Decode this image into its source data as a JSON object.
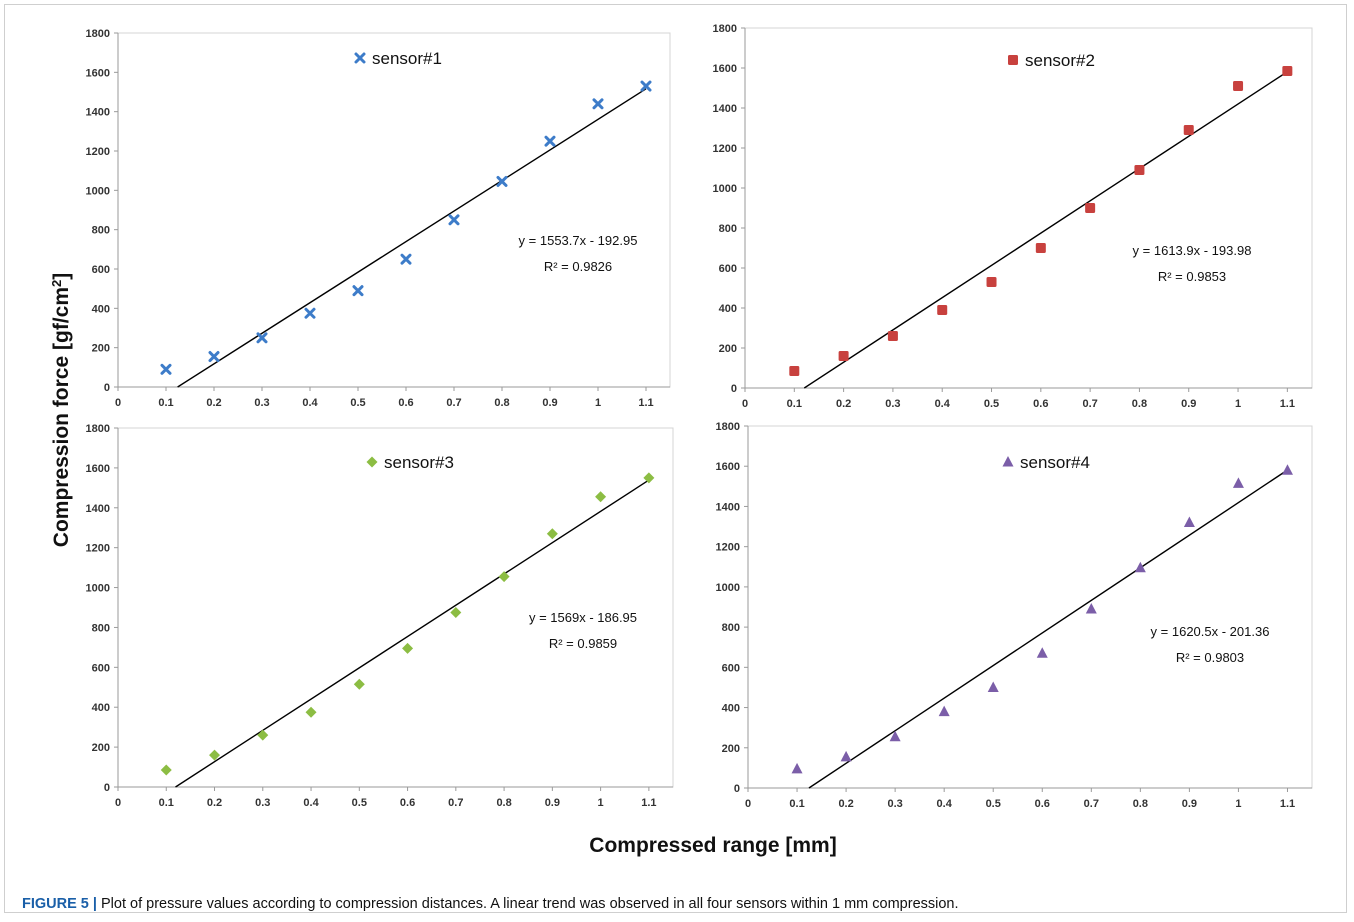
{
  "figure": {
    "ylabel": "Compression force [gf/cm",
    "ylabel_sup": "2",
    "ylabel_end": "]",
    "xlabel": "Compressed range [mm]",
    "caption_label": "FIGURE 5 |",
    "caption_text": " Plot of pressure values according to compression distances. A linear trend was observed in all four sensors within 1 mm compression."
  },
  "chart_data": [
    {
      "type": "scatter",
      "x": [
        0.1,
        0.2,
        0.3,
        0.4,
        0.5,
        0.6,
        0.7,
        0.8,
        0.9,
        1.0,
        1.1
      ],
      "series": [
        {
          "name": "sensor#1",
          "values": [
            90,
            155,
            250,
            375,
            490,
            650,
            850,
            1045,
            1250,
            1440,
            1530
          ],
          "color": "#3d7cc9",
          "marker": "x-cross"
        }
      ],
      "trendline": {
        "slope": 1553.7,
        "intercept": -192.95
      },
      "equation": "y = 1553.7x - 192.95",
      "r2": "R² = 0.9826",
      "xticks": [
        "0",
        "0.1",
        "0.2",
        "0.3",
        "0.4",
        "0.5",
        "0.6",
        "0.7",
        "0.8",
        "0.9",
        "1",
        "1.1"
      ],
      "yticks": [
        "0",
        "200",
        "400",
        "600",
        "800",
        "1000",
        "1200",
        "1400",
        "1600",
        "1800"
      ],
      "xlim": [
        0,
        1.15
      ],
      "ylim": [
        0,
        1800
      ],
      "grid": false,
      "legend_position": "top-center"
    },
    {
      "type": "scatter",
      "x": [
        0.1,
        0.2,
        0.3,
        0.4,
        0.5,
        0.6,
        0.7,
        0.8,
        0.9,
        1.0,
        1.1
      ],
      "series": [
        {
          "name": "sensor#2",
          "values": [
            85,
            160,
            260,
            390,
            530,
            700,
            900,
            1090,
            1290,
            1510,
            1585
          ],
          "color": "#c8413e",
          "marker": "square"
        }
      ],
      "trendline": {
        "slope": 1613.9,
        "intercept": -193.98
      },
      "equation": "y = 1613.9x - 193.98",
      "r2": "R² = 0.9853",
      "xticks": [
        "0",
        "0.1",
        "0.2",
        "0.3",
        "0.4",
        "0.5",
        "0.6",
        "0.7",
        "0.8",
        "0.9",
        "1",
        "1.1"
      ],
      "yticks": [
        "0",
        "200",
        "400",
        "600",
        "800",
        "1000",
        "1200",
        "1400",
        "1600",
        "1800"
      ],
      "xlim": [
        0,
        1.15
      ],
      "ylim": [
        0,
        1800
      ],
      "grid": false,
      "legend_position": "top-center"
    },
    {
      "type": "scatter",
      "x": [
        0.1,
        0.2,
        0.3,
        0.4,
        0.5,
        0.6,
        0.7,
        0.8,
        0.9,
        1.0,
        1.1
      ],
      "series": [
        {
          "name": "sensor#3",
          "values": [
            85,
            160,
            260,
            375,
            515,
            695,
            875,
            1055,
            1270,
            1455,
            1550
          ],
          "color": "#8cbd43",
          "marker": "diamond"
        }
      ],
      "trendline": {
        "slope": 1569,
        "intercept": -186.95
      },
      "equation": "y = 1569x - 186.95",
      "r2": "R² = 0.9859",
      "xticks": [
        "0",
        "0.1",
        "0.2",
        "0.3",
        "0.4",
        "0.5",
        "0.6",
        "0.7",
        "0.8",
        "0.9",
        "1",
        "1.1"
      ],
      "yticks": [
        "0",
        "200",
        "400",
        "600",
        "800",
        "1000",
        "1200",
        "1400",
        "1600",
        "1800"
      ],
      "xlim": [
        0,
        1.15
      ],
      "ylim": [
        0,
        1800
      ],
      "grid": false,
      "legend_position": "top-center"
    },
    {
      "type": "scatter",
      "x": [
        0.1,
        0.2,
        0.3,
        0.4,
        0.5,
        0.6,
        0.7,
        0.8,
        0.9,
        1.0,
        1.1
      ],
      "series": [
        {
          "name": "sensor#4",
          "values": [
            95,
            155,
            255,
            380,
            500,
            670,
            890,
            1095,
            1320,
            1515,
            1580
          ],
          "color": "#7b5ea8",
          "marker": "triangle"
        }
      ],
      "trendline": {
        "slope": 1620.5,
        "intercept": -201.36
      },
      "equation": "y = 1620.5x - 201.36",
      "r2": "R² = 0.9803",
      "xticks": [
        "0",
        "0.1",
        "0.2",
        "0.3",
        "0.4",
        "0.5",
        "0.6",
        "0.7",
        "0.8",
        "0.9",
        "1",
        "1.1"
      ],
      "yticks": [
        "0",
        "200",
        "400",
        "600",
        "800",
        "1000",
        "1200",
        "1400",
        "1600",
        "1800"
      ],
      "xlim": [
        0,
        1.15
      ],
      "ylim": [
        0,
        1800
      ],
      "grid": false,
      "legend_position": "top-center"
    }
  ]
}
